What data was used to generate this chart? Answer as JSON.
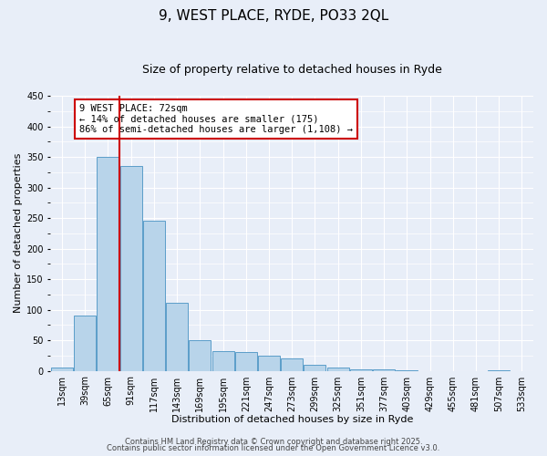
{
  "title_line1": "9, WEST PLACE, RYDE, PO33 2QL",
  "title_line2": "Size of property relative to detached houses in Ryde",
  "xlabel": "Distribution of detached houses by size in Ryde",
  "ylabel": "Number of detached properties",
  "categories": [
    "13sqm",
    "39sqm",
    "65sqm",
    "91sqm",
    "117sqm",
    "143sqm",
    "169sqm",
    "195sqm",
    "221sqm",
    "247sqm",
    "273sqm",
    "299sqm",
    "325sqm",
    "351sqm",
    "377sqm",
    "403sqm",
    "429sqm",
    "455sqm",
    "481sqm",
    "507sqm",
    "533sqm"
  ],
  "bar_values": [
    5,
    90,
    350,
    335,
    245,
    112,
    50,
    32,
    30,
    25,
    20,
    10,
    5,
    2,
    2,
    1,
    0,
    0,
    0,
    1,
    0
  ],
  "bar_color": "#b8d4ea",
  "bar_edge_color": "#5b9dc9",
  "background_color": "#e8eef8",
  "grid_color": "#ffffff",
  "vline_position": 2.5,
  "vline_color": "#cc0000",
  "annotation_box_text": "9 WEST PLACE: 72sqm\n← 14% of detached houses are smaller (175)\n86% of semi-detached houses are larger (1,108) →",
  "box_edge_color": "#cc0000",
  "ylim": [
    0,
    450
  ],
  "yticks": [
    0,
    50,
    100,
    150,
    200,
    250,
    300,
    350,
    400,
    450
  ],
  "footnote1": "Contains HM Land Registry data © Crown copyright and database right 2025.",
  "footnote2": "Contains public sector information licensed under the Open Government Licence v3.0.",
  "title_fontsize": 11,
  "subtitle_fontsize": 9,
  "axis_label_fontsize": 8,
  "tick_fontsize": 7,
  "annot_fontsize": 7.5,
  "footnote_fontsize": 6
}
